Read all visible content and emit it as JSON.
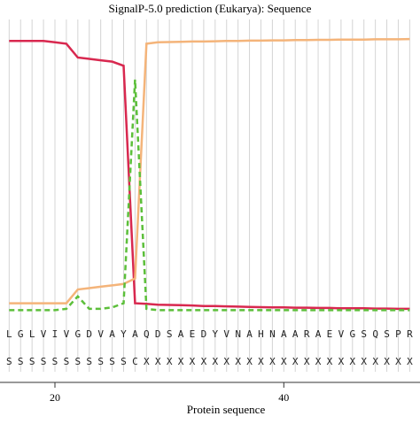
{
  "chart_data": {
    "type": "line",
    "title": "SignalP-5.0 prediction (Eukarya):  Sequence",
    "xlabel": "Protein sequence",
    "x": [
      16,
      17,
      18,
      19,
      20,
      21,
      22,
      23,
      24,
      25,
      26,
      27,
      28,
      29,
      30,
      31,
      32,
      33,
      34,
      35,
      36,
      37,
      38,
      39,
      40,
      41,
      42,
      43,
      44,
      45,
      46,
      47,
      48,
      49,
      50,
      51
    ],
    "residues": [
      "L",
      "G",
      "L",
      "V",
      "I",
      "V",
      "G",
      "D",
      "V",
      "A",
      "Y",
      "A",
      "Q",
      "D",
      "S",
      "A",
      "E",
      "D",
      "Y",
      "V",
      "N",
      "A",
      "H",
      "N",
      "A",
      "A",
      "R",
      "A",
      "E",
      "V",
      "G",
      "S",
      "Q",
      "S",
      "P",
      "R"
    ],
    "annotations": [
      "S",
      "S",
      "S",
      "S",
      "S",
      "S",
      "S",
      "S",
      "S",
      "S",
      "S",
      "C",
      "X",
      "X",
      "X",
      "X",
      "X",
      "X",
      "X",
      "X",
      "X",
      "X",
      "X",
      "X",
      "X",
      "X",
      "X",
      "X",
      "X",
      "X",
      "X",
      "X",
      "X",
      "X",
      "X",
      "X"
    ],
    "series": [
      {
        "color": "#d8284f",
        "dashed": false,
        "values": [
          0.98,
          0.98,
          0.98,
          0.98,
          0.975,
          0.97,
          0.92,
          0.915,
          0.91,
          0.905,
          0.89,
          0.03,
          0.028,
          0.025,
          0.024,
          0.023,
          0.022,
          0.02,
          0.02,
          0.019,
          0.018,
          0.017,
          0.016,
          0.015,
          0.015,
          0.014,
          0.014,
          0.013,
          0.013,
          0.012,
          0.012,
          0.012,
          0.011,
          0.011,
          0.01,
          0.01
        ]
      },
      {
        "color": "#f4b47a",
        "dashed": false,
        "values": [
          0.03,
          0.03,
          0.03,
          0.03,
          0.03,
          0.03,
          0.08,
          0.085,
          0.09,
          0.095,
          0.1,
          0.12,
          0.97,
          0.975,
          0.976,
          0.977,
          0.978,
          0.978,
          0.979,
          0.98,
          0.98,
          0.981,
          0.981,
          0.982,
          0.982,
          0.983,
          0.983,
          0.984,
          0.984,
          0.985,
          0.985,
          0.985,
          0.986,
          0.986,
          0.986,
          0.987
        ]
      },
      {
        "color": "#5cbf3a",
        "dashed": true,
        "values": [
          0.005,
          0.005,
          0.005,
          0.005,
          0.005,
          0.01,
          0.055,
          0.01,
          0.01,
          0.015,
          0.03,
          0.84,
          0.01,
          0.005,
          0.005,
          0.005,
          0.005,
          0.005,
          0.005,
          0.005,
          0.005,
          0.005,
          0.005,
          0.005,
          0.005,
          0.005,
          0.005,
          0.005,
          0.005,
          0.005,
          0.005,
          0.005,
          0.005,
          0.005,
          0.005,
          0.005
        ]
      }
    ],
    "xlim": [
      15.2,
      51.9
    ],
    "xticks": [
      20,
      40
    ],
    "ylim": [
      0,
      1
    ],
    "grid": true
  }
}
